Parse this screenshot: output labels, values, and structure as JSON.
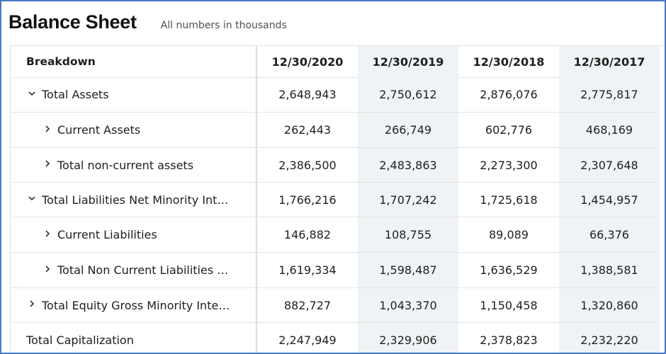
{
  "header": {
    "title": "Balance Sheet",
    "subtitle": "All numbers in thousands"
  },
  "table": {
    "breakdown_label": "Breakdown",
    "columns": [
      "12/30/2020",
      "12/30/2019",
      "12/30/2018",
      "12/30/2017"
    ],
    "rows": [
      {
        "label": "Total Assets",
        "toggle": "chevron-down-icon",
        "values": [
          "2,648,943",
          "2,750,612",
          "2,876,076",
          "2,775,817"
        ]
      },
      {
        "label": "Current Assets",
        "toggle": "chevron-right-icon",
        "values": [
          "262,443",
          "266,749",
          "602,776",
          "468,169"
        ]
      },
      {
        "label": "Total non-current assets",
        "toggle": "chevron-right-icon",
        "values": [
          "2,386,500",
          "2,483,863",
          "2,273,300",
          "2,307,648"
        ]
      },
      {
        "label": "Total Liabilities Net Minority Int…",
        "toggle": "chevron-down-icon",
        "values": [
          "1,766,216",
          "1,707,242",
          "1,725,618",
          "1,454,957"
        ]
      },
      {
        "label": "Current Liabilities",
        "toggle": "chevron-right-icon",
        "values": [
          "146,882",
          "108,755",
          "89,089",
          "66,376"
        ]
      },
      {
        "label": "Total Non Current Liabilities …",
        "toggle": "chevron-right-icon",
        "values": [
          "1,619,334",
          "1,598,487",
          "1,636,529",
          "1,388,581"
        ]
      },
      {
        "label": "Total Equity Gross Minority Inte…",
        "toggle": "chevron-right-icon",
        "values": [
          "882,727",
          "1,043,370",
          "1,150,458",
          "1,320,860"
        ]
      },
      {
        "label": "Total Capitalization",
        "toggle": "",
        "values": [
          "2,247,949",
          "2,329,906",
          "2,378,823",
          "2,232,220"
        ]
      }
    ]
  }
}
